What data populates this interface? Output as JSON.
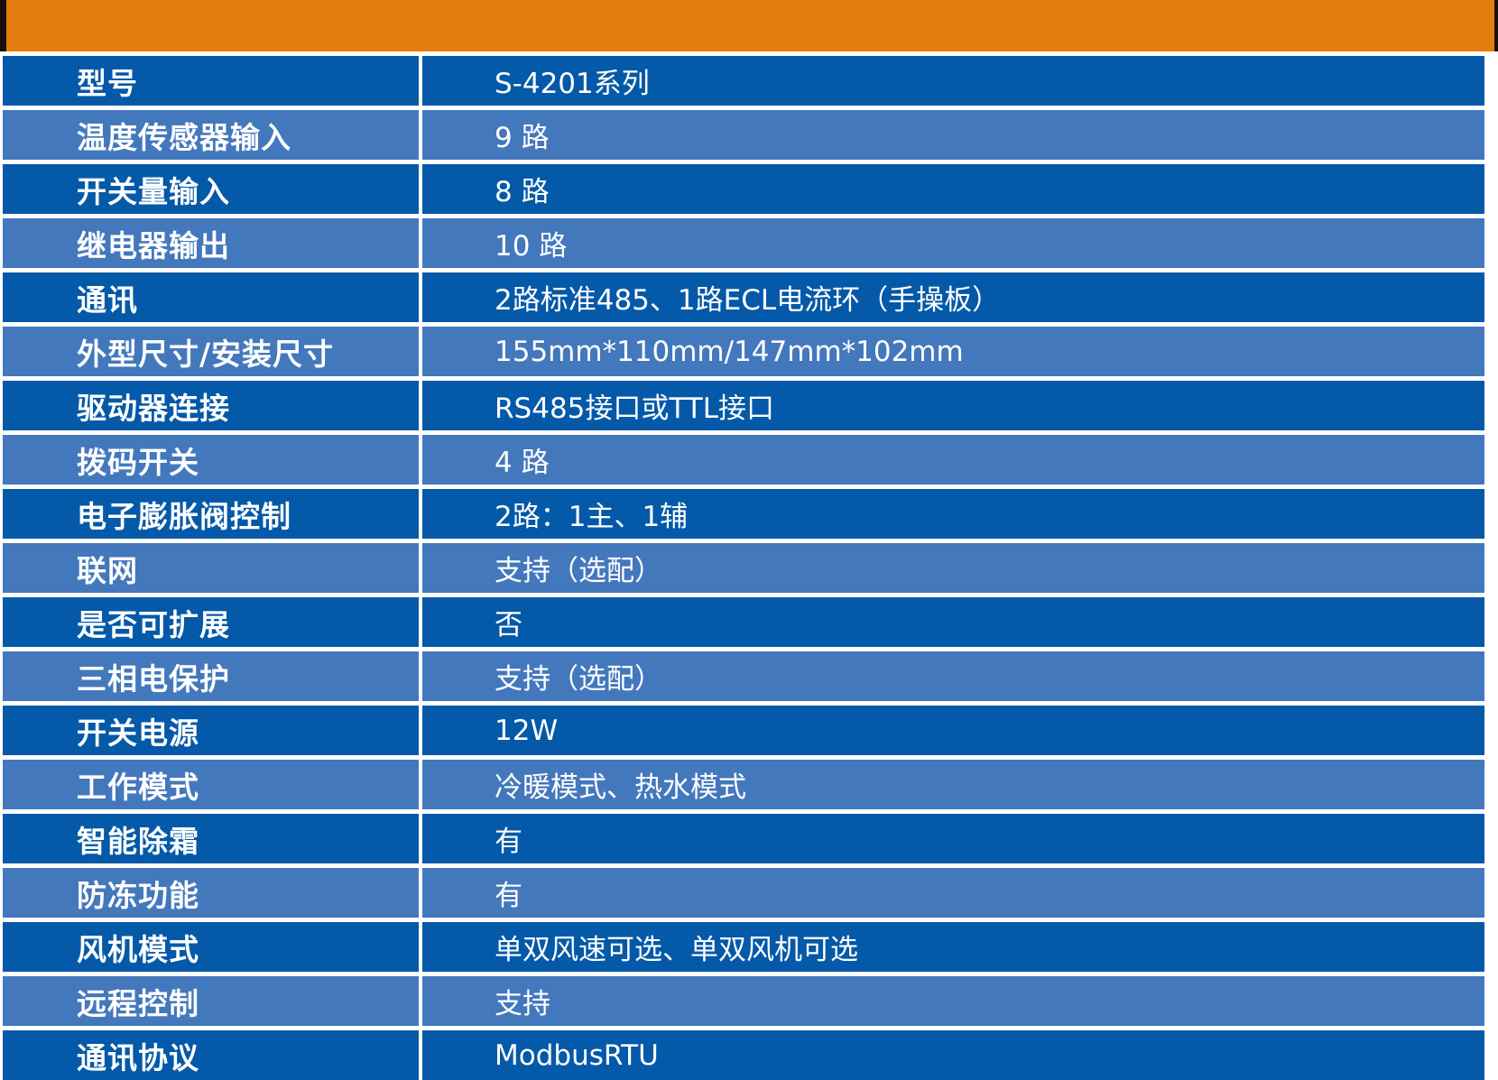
{
  "colors": {
    "header_orange": "#E57D0F",
    "header_edge_strip": "#17100A",
    "row_dark_blue": "#0459A8",
    "row_light_blue": "#4478BD",
    "row_text": "#FFFFFF",
    "background": "#FFFFFF"
  },
  "spec_table": {
    "rows": [
      {
        "label": "型号",
        "value": "S-4201系列"
      },
      {
        "label": "温度传感器输入",
        "value": "9 路"
      },
      {
        "label": "开关量输入",
        "value": "8 路"
      },
      {
        "label": "继电器输出",
        "value": "10 路"
      },
      {
        "label": "通讯",
        "value": "2路标准485、1路ECL电流环（手操板）"
      },
      {
        "label": "外型尺寸/安装尺寸",
        "value": "155mm*110mm/147mm*102mm"
      },
      {
        "label": "驱动器连接",
        "value": "RS485接口或TTL接口"
      },
      {
        "label": "拨码开关",
        "value": "4 路"
      },
      {
        "label": "电子膨胀阀控制",
        "value": "2路：1主、1辅"
      },
      {
        "label": "联网",
        "value": "支持（选配）"
      },
      {
        "label": "是否可扩展",
        "value": "否"
      },
      {
        "label": "三相电保护",
        "value": "支持（选配）"
      },
      {
        "label": "开关电源",
        "value": "12W"
      },
      {
        "label": "工作模式",
        "value": "冷暖模式、热水模式"
      },
      {
        "label": "智能除霜",
        "value": "有"
      },
      {
        "label": "防冻功能",
        "value": "有"
      },
      {
        "label": "风机模式",
        "value": "单双风速可选、单双风机可选"
      },
      {
        "label": "远程控制",
        "value": "支持"
      },
      {
        "label": "通讯协议",
        "value": "ModbusRTU"
      }
    ]
  }
}
